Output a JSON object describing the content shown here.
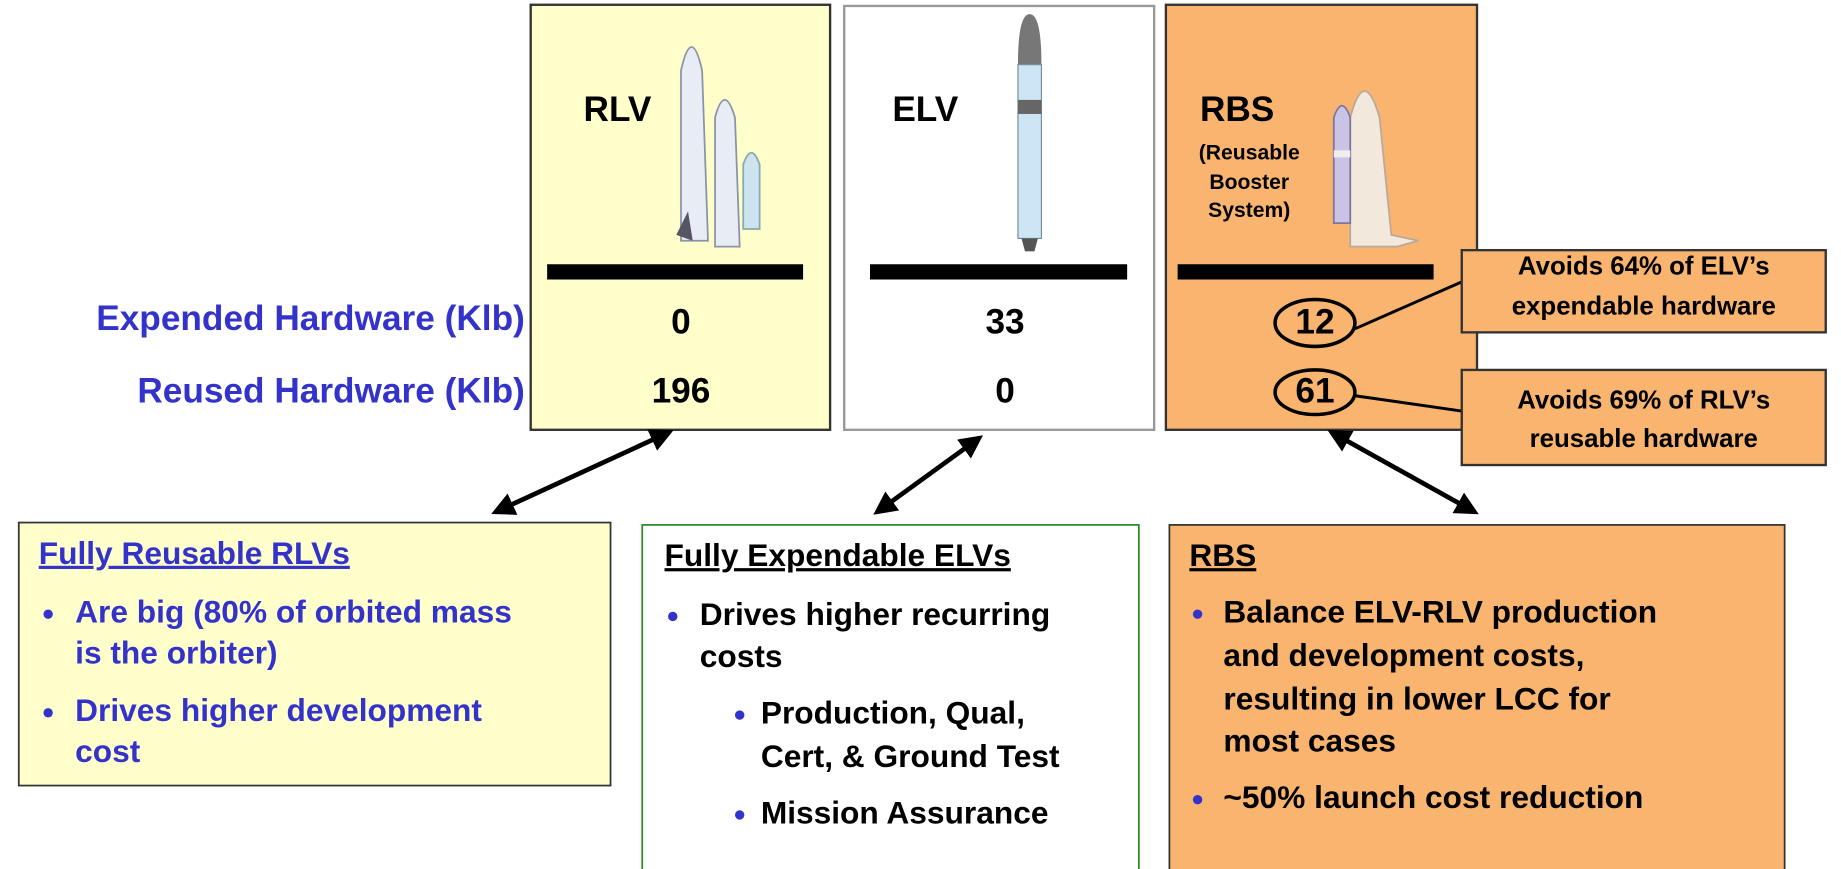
{
  "row_labels": [
    "Expended Hardware (Klb)",
    "Reused Hardware (Klb)"
  ],
  "columns": [
    {
      "name": "RLV",
      "expended": 0,
      "reused": 196
    },
    {
      "name": "ELV",
      "expended": 33,
      "reused": 0
    },
    {
      "name": "RBS",
      "subtitle": [
        "(Reusable",
        "Booster",
        "System)"
      ],
      "expended": 12,
      "reused": 61
    }
  ],
  "callouts": [
    [
      "Avoids 64% of ELV’s",
      "expendable hardware"
    ],
    [
      "Avoids 69% of RLV’s",
      "reusable hardware"
    ]
  ],
  "boxes": [
    {
      "heading": "Fully Reusable RLVs",
      "bullets": [
        [
          "Are big (80% of orbited mass",
          "is the orbiter)"
        ],
        [
          "Drives higher development",
          "cost"
        ]
      ]
    },
    {
      "heading": "Fully Expendable ELVs",
      "bullets": [
        [
          "Drives higher recurring",
          "costs"
        ]
      ],
      "sub_bullets": [
        [
          "Production, Qual,",
          "Cert, & Ground Test"
        ],
        [
          "Mission Assurance"
        ]
      ]
    },
    {
      "heading": "RBS",
      "bullets": [
        [
          "Balance ELV-RLV production",
          "and development costs,",
          "resulting in lower LCC for",
          "most cases"
        ],
        [
          "~50% launch cost reduction"
        ]
      ]
    }
  ]
}
